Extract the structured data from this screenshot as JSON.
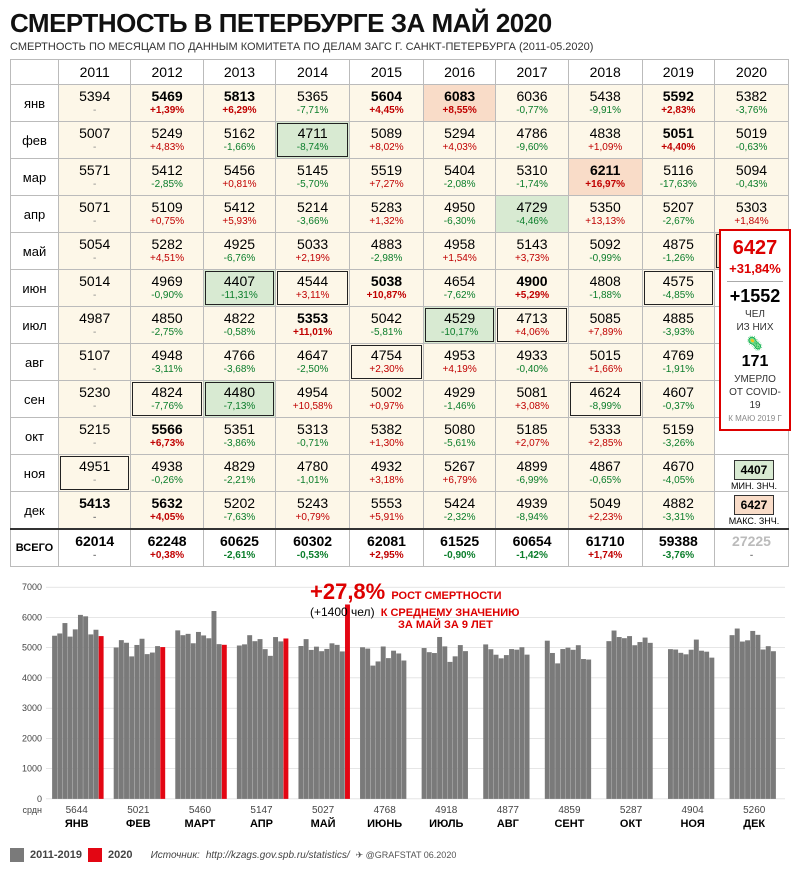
{
  "title": "СМЕРТНОСТЬ В ПЕТЕРБУРГЕ ЗА МАЙ 2020",
  "subtitle": "СМЕРТНОСТЬ ПО МЕСЯЦАМ ПО ДАННЫМ КОМИТЕТА ПО ДЕЛАМ ЗАГС Г. САНКТ-ПЕТЕРБУРГА (2011-05.2020)",
  "years": [
    "2011",
    "2012",
    "2013",
    "2014",
    "2015",
    "2016",
    "2017",
    "2018",
    "2019",
    "2020"
  ],
  "months": [
    "янв",
    "фев",
    "мар",
    "апр",
    "май",
    "июн",
    "июл",
    "авг",
    "сен",
    "окт",
    "ноя",
    "дек"
  ],
  "total_label": "ВСЕГО",
  "colors": {
    "bg_default": "#fdf7e8",
    "bg_min": "#d8ead2",
    "bg_max": "#f9dcc8",
    "pct_pos": "#c00000",
    "pct_neg": "#0a7d2a",
    "bar_gray": "#7a7a7a",
    "bar_red": "#e30613",
    "grid": "#cccccc",
    "axis_text": "#444"
  },
  "table": [
    [
      {
        "v": "5394",
        "p": "-"
      },
      {
        "v": "5469",
        "p": "+1,39%",
        "b": true
      },
      {
        "v": "5813",
        "p": "+6,29%",
        "b": true
      },
      {
        "v": "5365",
        "p": "-7,71%"
      },
      {
        "v": "5604",
        "p": "+4,45%",
        "b": true
      },
      {
        "v": "6083",
        "p": "+8,55%",
        "b": true,
        "max": true
      },
      {
        "v": "6036",
        "p": "-0,77%"
      },
      {
        "v": "5438",
        "p": "-9,91%"
      },
      {
        "v": "5592",
        "p": "+2,83%",
        "b": true
      },
      {
        "v": "5382",
        "p": "-3,76%"
      }
    ],
    [
      {
        "v": "5007",
        "p": "-"
      },
      {
        "v": "5249",
        "p": "+4,83%"
      },
      {
        "v": "5162",
        "p": "-1,66%"
      },
      {
        "v": "4711",
        "p": "-8,74%",
        "min": true,
        "box": true
      },
      {
        "v": "5089",
        "p": "+8,02%"
      },
      {
        "v": "5294",
        "p": "+4,03%"
      },
      {
        "v": "4786",
        "p": "-9,60%"
      },
      {
        "v": "4838",
        "p": "+1,09%"
      },
      {
        "v": "5051",
        "p": "+4,40%",
        "b": true
      },
      {
        "v": "5019",
        "p": "-0,63%"
      }
    ],
    [
      {
        "v": "5571",
        "p": "-"
      },
      {
        "v": "5412",
        "p": "-2,85%"
      },
      {
        "v": "5456",
        "p": "+0,81%"
      },
      {
        "v": "5145",
        "p": "-5,70%"
      },
      {
        "v": "5519",
        "p": "+7,27%"
      },
      {
        "v": "5404",
        "p": "-2,08%"
      },
      {
        "v": "5310",
        "p": "-1,74%"
      },
      {
        "v": "6211",
        "p": "+16,97%",
        "b": true,
        "max": true
      },
      {
        "v": "5116",
        "p": "-17,63%"
      },
      {
        "v": "5094",
        "p": "-0,43%"
      }
    ],
    [
      {
        "v": "5071",
        "p": "-"
      },
      {
        "v": "5109",
        "p": "+0,75%"
      },
      {
        "v": "5412",
        "p": "+5,93%"
      },
      {
        "v": "5214",
        "p": "-3,66%"
      },
      {
        "v": "5283",
        "p": "+1,32%"
      },
      {
        "v": "4950",
        "p": "-6,30%"
      },
      {
        "v": "4729",
        "p": "-4,46%",
        "min": true
      },
      {
        "v": "5350",
        "p": "+13,13%"
      },
      {
        "v": "5207",
        "p": "-2,67%"
      },
      {
        "v": "5303",
        "p": "+1,84%"
      }
    ],
    [
      {
        "v": "5054",
        "p": "-"
      },
      {
        "v": "5282",
        "p": "+4,51%"
      },
      {
        "v": "4925",
        "p": "-6,76%"
      },
      {
        "v": "5033",
        "p": "+2,19%"
      },
      {
        "v": "4883",
        "p": "-2,98%"
      },
      {
        "v": "4958",
        "p": "+1,54%"
      },
      {
        "v": "5143",
        "p": "+3,73%"
      },
      {
        "v": "5092",
        "p": "-0,99%"
      },
      {
        "v": "4875",
        "p": "-1,26%"
      },
      {
        "v": "6427",
        "p": "+31,84%",
        "b": true,
        "max": true,
        "box": true
      }
    ],
    [
      {
        "v": "5014",
        "p": "-"
      },
      {
        "v": "4969",
        "p": "-0,90%"
      },
      {
        "v": "4407",
        "p": "-11,31%",
        "min": true,
        "box": true
      },
      {
        "v": "4544",
        "p": "+3,11%",
        "box": true
      },
      {
        "v": "5038",
        "p": "+10,87%",
        "b": true
      },
      {
        "v": "4654",
        "p": "-7,62%"
      },
      {
        "v": "4900",
        "p": "+5,29%",
        "b": true
      },
      {
        "v": "4808",
        "p": "-1,88%"
      },
      {
        "v": "4575",
        "p": "-4,85%",
        "box": true
      },
      {
        "v": ""
      }
    ],
    [
      {
        "v": "4987",
        "p": "-"
      },
      {
        "v": "4850",
        "p": "-2,75%"
      },
      {
        "v": "4822",
        "p": "-0,58%"
      },
      {
        "v": "5353",
        "p": "+11,01%",
        "b": true
      },
      {
        "v": "5042",
        "p": "-5,81%"
      },
      {
        "v": "4529",
        "p": "-10,17%",
        "min": true,
        "box": true
      },
      {
        "v": "4713",
        "p": "+4,06%",
        "box": true
      },
      {
        "v": "5085",
        "p": "+7,89%"
      },
      {
        "v": "4885",
        "p": "-3,93%"
      },
      {
        "v": ""
      }
    ],
    [
      {
        "v": "5107",
        "p": "-"
      },
      {
        "v": "4948",
        "p": "-3,11%"
      },
      {
        "v": "4766",
        "p": "-3,68%"
      },
      {
        "v": "4647",
        "p": "-2,50%"
      },
      {
        "v": "4754",
        "p": "+2,30%",
        "box": true
      },
      {
        "v": "4953",
        "p": "+4,19%"
      },
      {
        "v": "4933",
        "p": "-0,40%"
      },
      {
        "v": "5015",
        "p": "+1,66%"
      },
      {
        "v": "4769",
        "p": "-1,91%"
      },
      {
        "v": ""
      }
    ],
    [
      {
        "v": "5230",
        "p": "-"
      },
      {
        "v": "4824",
        "p": "-7,76%",
        "box": true
      },
      {
        "v": "4480",
        "p": "-7,13%",
        "min": true,
        "box": true
      },
      {
        "v": "4954",
        "p": "+10,58%"
      },
      {
        "v": "5002",
        "p": "+0,97%"
      },
      {
        "v": "4929",
        "p": "-1,46%"
      },
      {
        "v": "5081",
        "p": "+3,08%"
      },
      {
        "v": "4624",
        "p": "-8,99%",
        "box": true
      },
      {
        "v": "4607",
        "p": "-0,37%"
      },
      {
        "v": ""
      }
    ],
    [
      {
        "v": "5215",
        "p": "-"
      },
      {
        "v": "5566",
        "p": "+6,73%",
        "b": true
      },
      {
        "v": "5351",
        "p": "-3,86%"
      },
      {
        "v": "5313",
        "p": "-0,71%"
      },
      {
        "v": "5382",
        "p": "+1,30%"
      },
      {
        "v": "5080",
        "p": "-5,61%"
      },
      {
        "v": "5185",
        "p": "+2,07%"
      },
      {
        "v": "5333",
        "p": "+2,85%"
      },
      {
        "v": "5159",
        "p": "-3,26%"
      },
      {
        "v": ""
      }
    ],
    [
      {
        "v": "4951",
        "p": "-",
        "box": true
      },
      {
        "v": "4938",
        "p": "-0,26%"
      },
      {
        "v": "4829",
        "p": "-2,21%"
      },
      {
        "v": "4780",
        "p": "-1,01%"
      },
      {
        "v": "4932",
        "p": "+3,18%"
      },
      {
        "v": "5267",
        "p": "+6,79%"
      },
      {
        "v": "4899",
        "p": "-6,99%"
      },
      {
        "v": "4867",
        "p": "-0,65%"
      },
      {
        "v": "4670",
        "p": "-4,05%"
      },
      {
        "v": ""
      }
    ],
    [
      {
        "v": "5413",
        "p": "-",
        "b": true
      },
      {
        "v": "5632",
        "p": "+4,05%",
        "b": true
      },
      {
        "v": "5202",
        "p": "-7,63%"
      },
      {
        "v": "5243",
        "p": "+0,79%"
      },
      {
        "v": "5553",
        "p": "+5,91%"
      },
      {
        "v": "5424",
        "p": "-2,32%"
      },
      {
        "v": "4939",
        "p": "-8,94%"
      },
      {
        "v": "5049",
        "p": "+2,23%"
      },
      {
        "v": "4882",
        "p": "-3,31%"
      },
      {
        "v": ""
      }
    ]
  ],
  "totals": [
    {
      "v": "62014",
      "p": "-"
    },
    {
      "v": "62248",
      "p": "+0,38%"
    },
    {
      "v": "60625",
      "p": "-2,61%"
    },
    {
      "v": "60302",
      "p": "-0,53%"
    },
    {
      "v": "62081",
      "p": "+2,95%"
    },
    {
      "v": "61525",
      "p": "-0,90%"
    },
    {
      "v": "60654",
      "p": "-1,42%"
    },
    {
      "v": "61710",
      "p": "+1,74%"
    },
    {
      "v": "59388",
      "p": "-3,76%"
    },
    {
      "v": "27225",
      "p": "-",
      "faded": true
    }
  ],
  "callout": {
    "value": "6427",
    "pct": "+31,84%",
    "delta": "+1552",
    "delta_unit": "ЧЕЛ",
    "of_them": "ИЗ НИХ",
    "covid_n": "171",
    "covid_label": "УМЕРЛО\nОТ COVID-19",
    "ref": "К МАЮ 2019 Г"
  },
  "legend_minmax": {
    "min_v": "4407",
    "min_l": "МИН. ЗНЧ.",
    "max_v": "6427",
    "max_l": "МАКС. ЗНЧ."
  },
  "chart": {
    "ylim": [
      0,
      7000
    ],
    "yticks": [
      0,
      1000,
      2000,
      3000,
      4000,
      5000,
      6000,
      7000
    ],
    "months_full": [
      "ЯНВ",
      "ФЕВ",
      "МАРТ",
      "АПР",
      "МАЙ",
      "ИЮНЬ",
      "ИЮЛЬ",
      "АВГ",
      "СЕНТ",
      "ОКТ",
      "НОЯ",
      "ДЕК"
    ],
    "avg_label": "срдн",
    "averages": [
      5644,
      5021,
      5460,
      5147,
      5027,
      4768,
      4918,
      4877,
      4859,
      5287,
      4904,
      5260
    ],
    "gray_series": [
      [
        5394,
        5469,
        5813,
        5365,
        5604,
        6083,
        6036,
        5438,
        5592
      ],
      [
        5007,
        5249,
        5162,
        4711,
        5089,
        5294,
        4786,
        4838,
        5051
      ],
      [
        5571,
        5412,
        5456,
        5145,
        5519,
        5404,
        5310,
        6211,
        5116
      ],
      [
        5071,
        5109,
        5412,
        5214,
        5283,
        4950,
        4729,
        5350,
        5207
      ],
      [
        5054,
        5282,
        4925,
        5033,
        4883,
        4958,
        5143,
        5092,
        4875
      ],
      [
        5014,
        4969,
        4407,
        4544,
        5038,
        4654,
        4900,
        4808,
        4575
      ],
      [
        4987,
        4850,
        4822,
        5353,
        5042,
        4529,
        4713,
        5085,
        4885
      ],
      [
        5107,
        4948,
        4766,
        4647,
        4754,
        4953,
        4933,
        5015,
        4769
      ],
      [
        5230,
        4824,
        4480,
        4954,
        5002,
        4929,
        5081,
        4624,
        4607
      ],
      [
        5215,
        5566,
        5351,
        5313,
        5382,
        5080,
        5185,
        5333,
        5159
      ],
      [
        4951,
        4938,
        4829,
        4780,
        4932,
        5267,
        4899,
        4867,
        4670
      ],
      [
        5413,
        5632,
        5202,
        5243,
        5553,
        5424,
        4939,
        5049,
        4882
      ]
    ],
    "red_series": [
      5382,
      5019,
      5094,
      5303,
      6427
    ],
    "annotation": {
      "pct": "+27,8%",
      "sub": "(+1400 чел)",
      "text1": "РОСТ СМЕРТНОСТИ",
      "text2": "К СРЕДНЕМУ ЗНАЧЕНИЮ",
      "text3": "ЗА МАЙ ЗА 9 ЛЕТ"
    },
    "legend": {
      "gray": "2011-2019",
      "red": "2020"
    },
    "source_label": "Источник:",
    "source": "http://kzags.gov.spb.ru/statistics/",
    "attribution": "✈ @GRAFSTAT 06.2020"
  }
}
